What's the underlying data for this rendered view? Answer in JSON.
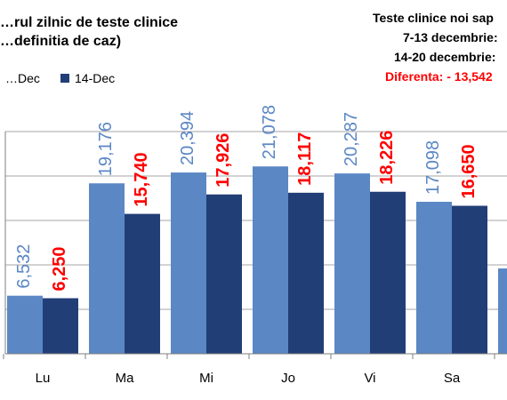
{
  "chart_data": {
    "type": "bar",
    "title": "…rul zilnic de teste clinice",
    "subtitle": "…definitia de caz)",
    "categories": [
      "Lu",
      "Ma",
      "Mi",
      "Jo",
      "Vi",
      "Sa"
    ],
    "series": [
      {
        "name": "…Dec",
        "color": "#5b87c5",
        "label_color": "#5b87c5",
        "values": [
          6532,
          19176,
          20394,
          21078,
          20287,
          17098
        ]
      },
      {
        "name": "14-Dec",
        "color": "#213e77",
        "label_color": "#ff0000",
        "values": [
          6250,
          15740,
          17926,
          18117,
          18226,
          16650
        ]
      }
    ],
    "ylim": [
      0,
      25000
    ],
    "grid": true,
    "legend": "top-left"
  },
  "stats_panel": {
    "line1": "Teste clinice noi  sap",
    "line2": "7-13 decembrie:",
    "line3": "14-20 decembrie:",
    "line4": "Diferenta: - 13,542",
    "color_main": "#000000",
    "color_diff": "#ff0000"
  }
}
